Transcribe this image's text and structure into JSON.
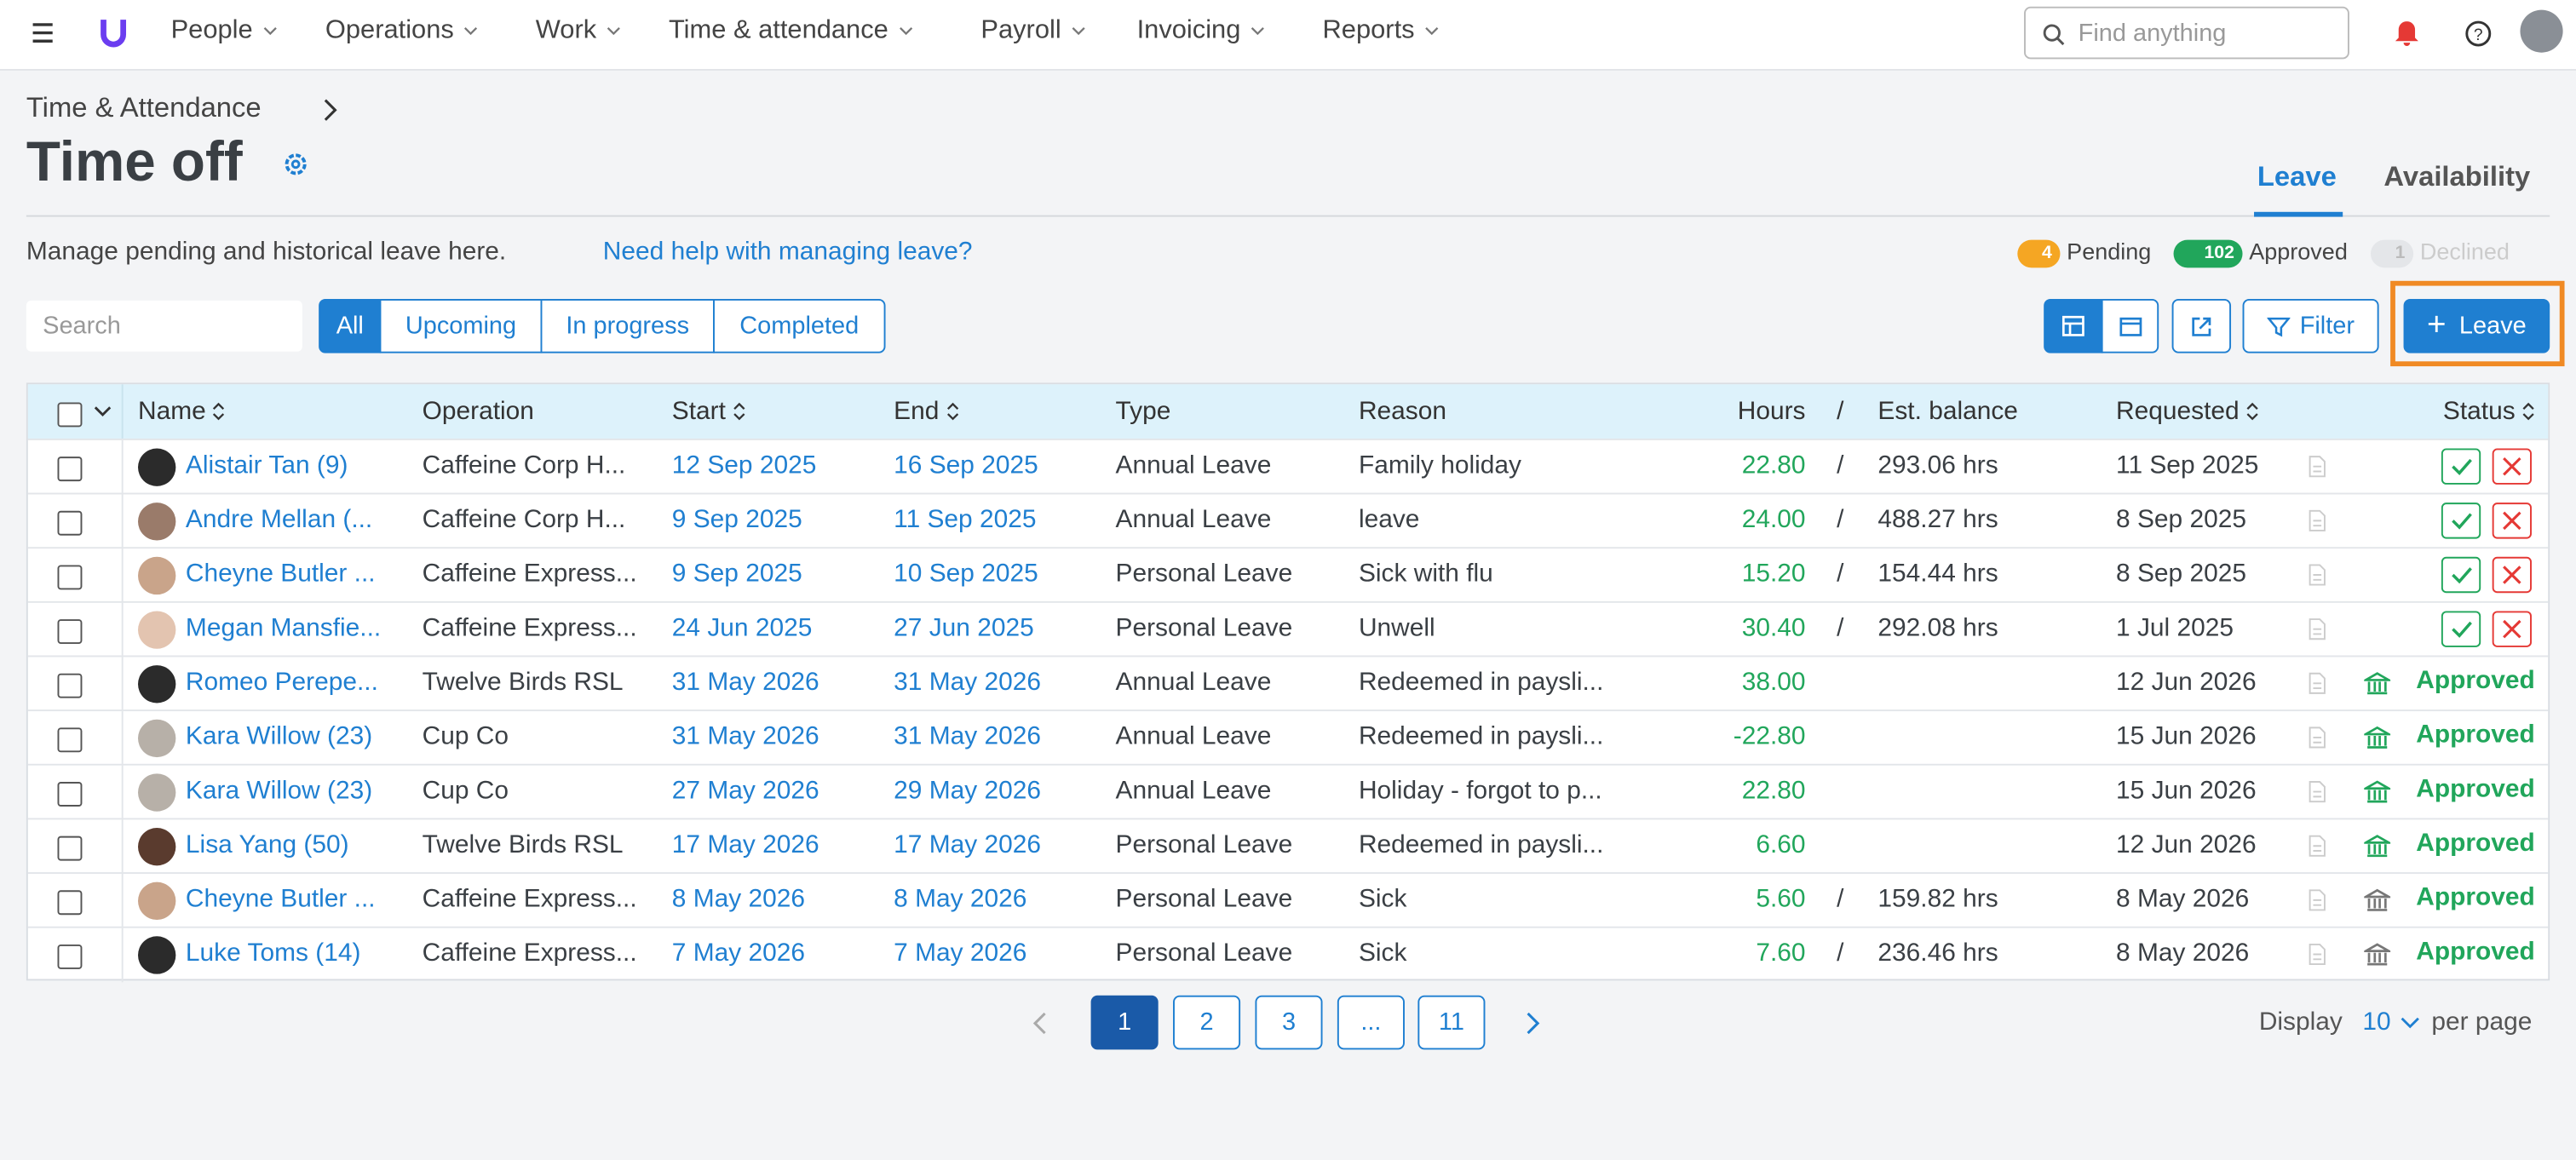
{
  "nav": {
    "items": [
      "People",
      "Operations",
      "Work",
      "Time & attendance",
      "Payroll",
      "Invoicing",
      "Reports"
    ],
    "search_placeholder": "Find anything"
  },
  "header": {
    "breadcrumb": "Time & Attendance",
    "title": "Time off",
    "tabs": [
      "Leave",
      "Availability"
    ]
  },
  "summary": {
    "description": "Manage pending and historical leave here.",
    "help_link": "Need help with managing leave?",
    "statuses": [
      {
        "count": "4",
        "label": "Pending"
      },
      {
        "count": "102",
        "label": "Approved"
      },
      {
        "count": "1",
        "label": "Declined"
      }
    ]
  },
  "toolbar": {
    "search_placeholder": "Search",
    "filters": [
      "All",
      "Upcoming",
      "In progress",
      "Completed"
    ],
    "filter_button": "Filter",
    "add_button": "Leave"
  },
  "table": {
    "columns": [
      "Name",
      "Operation",
      "Start",
      "End",
      "Type",
      "Reason",
      "Hours",
      "/",
      "Est. balance",
      "Requested",
      "Status"
    ],
    "rows": [
      [
        "Alistair Tan (9)",
        "Caffeine Corp H...",
        "12 Sep 2025",
        "16 Sep 2025",
        "Annual Leave",
        "Family holiday",
        "22.80",
        "293.06 hrs",
        "11 Sep 2025",
        null
      ],
      [
        "Andre Mellan (...",
        "Caffeine Corp H...",
        "9 Sep 2025",
        "11 Sep 2025",
        "Annual Leave",
        "leave",
        "24.00",
        "488.27 hrs",
        "8 Sep 2025",
        null
      ],
      [
        "Cheyne Butler ...",
        "Caffeine Express...",
        "9 Sep 2025",
        "10 Sep 2025",
        "Personal Leave",
        "Sick with flu",
        "15.20",
        "154.44 hrs",
        "8 Sep 2025",
        null
      ],
      [
        "Megan Mansfie...",
        "Caffeine Express...",
        "24 Jun 2025",
        "27 Jun 2025",
        "Personal Leave",
        "Unwell",
        "30.40",
        "292.08 hrs",
        "1 Jul 2025",
        null
      ],
      [
        "Romeo Perepe...",
        "Twelve Birds RSL",
        "31 May 2026",
        "31 May 2026",
        "Annual Leave",
        "Redeemed in paysli...",
        "38.00",
        null,
        "12 Jun 2026",
        "Approved"
      ],
      [
        "Kara Willow (23)",
        "Cup Co",
        "31 May 2026",
        "31 May 2026",
        "Annual Leave",
        "Redeemed in paysli...",
        "-22.80",
        null,
        "15 Jun 2026",
        "Approved"
      ],
      [
        "Kara Willow (23)",
        "Cup Co",
        "27 May 2026",
        "29 May 2026",
        "Annual Leave",
        "Holiday - forgot to p...",
        "22.80",
        null,
        "15 Jun 2026",
        "Approved"
      ],
      [
        "Lisa Yang (50)",
        "Twelve Birds RSL",
        "17 May 2026",
        "17 May 2026",
        "Personal Leave",
        "Redeemed in paysli...",
        "6.60",
        null,
        "12 Jun 2026",
        "Approved"
      ],
      [
        "Cheyne Butler ...",
        "Caffeine Express...",
        "8 May 2026",
        "8 May 2026",
        "Personal Leave",
        "Sick",
        "5.60",
        "159.82 hrs",
        "8 May 2026",
        "Approved"
      ],
      [
        "Luke Toms (14)",
        "Caffeine Express...",
        "7 May 2026",
        "7 May 2026",
        "Personal Leave",
        "Sick",
        "7.60",
        "236.46 hrs",
        "8 May 2026",
        "Approved"
      ]
    ]
  },
  "pagination": {
    "pages": [
      "1",
      "2",
      "3",
      "...",
      "11"
    ],
    "display_label": "Display",
    "page_size": "10",
    "per_page_label": "per page"
  }
}
